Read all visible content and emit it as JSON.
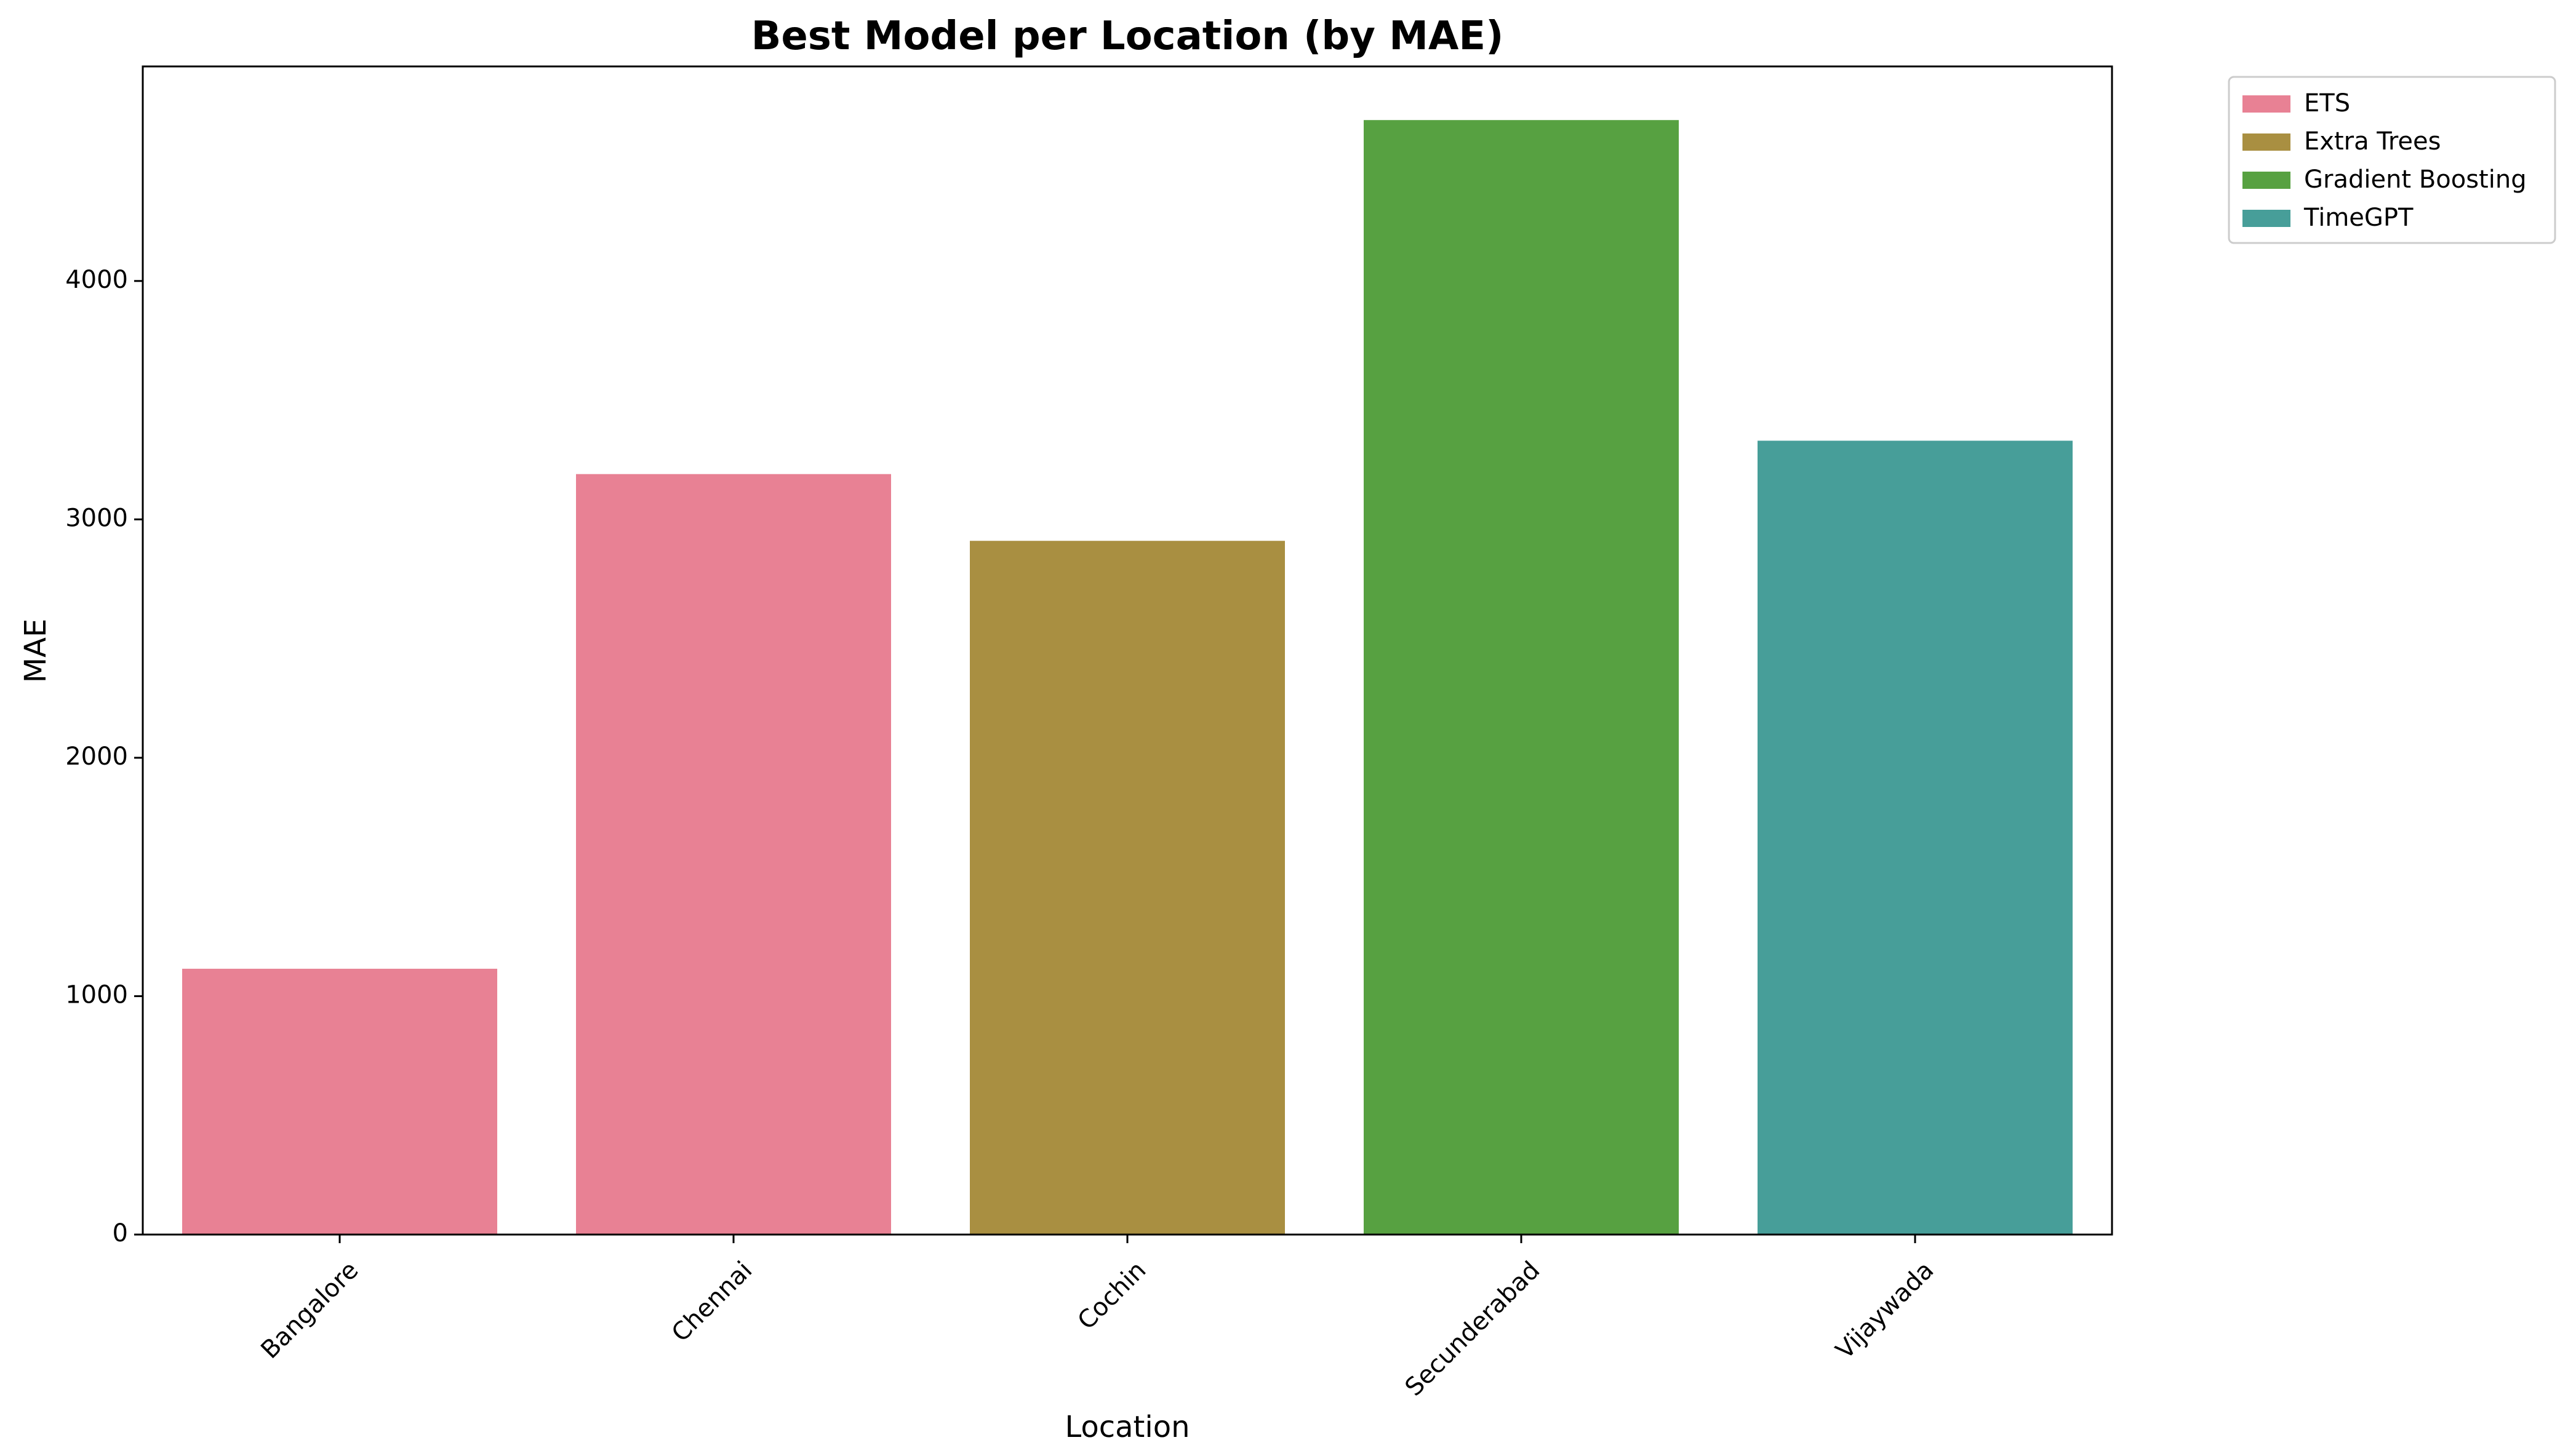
{
  "chart_data": {
    "type": "bar",
    "title": "Best Model per Location (by MAE)",
    "xlabel": "Location",
    "ylabel": "MAE",
    "categories": [
      "Bangalore",
      "Chennai",
      "Cochin",
      "Secunderabad",
      "Vijaywada"
    ],
    "values": [
      1115,
      3190,
      2910,
      4675,
      3330
    ],
    "bar_series": [
      "ETS",
      "ETS",
      "Extra Trees",
      "Gradient Boosting",
      "TimeGPT"
    ],
    "ylim": [
      0,
      4900
    ],
    "yticks": [
      0,
      1000,
      2000,
      3000,
      4000
    ],
    "x_tick_rotation_deg": 45,
    "grid": false,
    "legend": {
      "placement": "outside-top-right",
      "entries": [
        {
          "name": "ETS",
          "color": "#e88194"
        },
        {
          "name": "Extra Trees",
          "color": "#a98f41"
        },
        {
          "name": "Gradient Boosting",
          "color": "#57a141"
        },
        {
          "name": "TimeGPT",
          "color": "#479e99"
        }
      ]
    }
  }
}
